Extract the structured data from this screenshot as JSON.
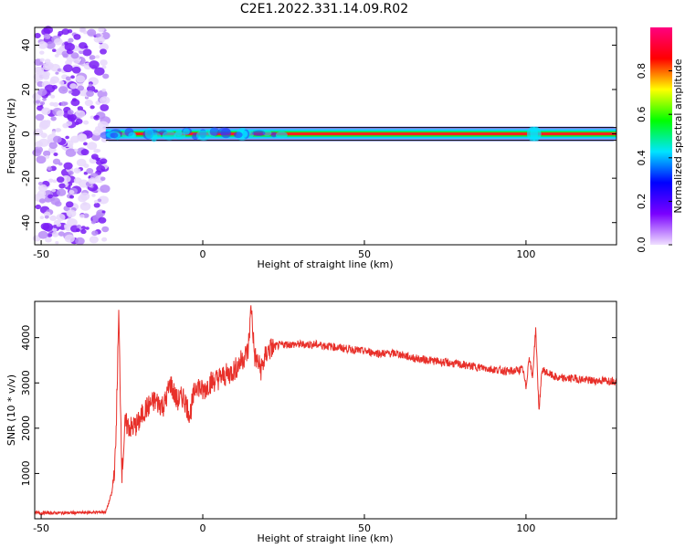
{
  "title": "C2E1.2022.331.14.09.R02",
  "colors": {
    "snr_line": "#e8302a",
    "spectrum_points": "#7a3cf0",
    "axes": "#000000"
  },
  "chart_data": [
    {
      "type": "heatmap",
      "xlabel": "Height of straight line (km)",
      "ylabel": "Frequency (Hz)",
      "xlim": [
        -52,
        128
      ],
      "ylim": [
        -50,
        48
      ],
      "x_ticks": [
        -50,
        0,
        50,
        100
      ],
      "y_ticks": [
        40,
        20,
        0,
        -20,
        -40
      ],
      "colorbar": {
        "label": "Normalized spectral amplitude",
        "range": [
          0,
          1
        ],
        "ticks": [
          "0.0",
          "0.2",
          "0.4",
          "0.6",
          "0.8"
        ],
        "colormap": [
          "#f0e0ff",
          "#7a00ff",
          "#0000ff",
          "#00e5ff",
          "#00ff00",
          "#ffff00",
          "#ff0000",
          "#ff0080"
        ]
      },
      "description_values": {
        "noise_region_x": [
          -52,
          -30
        ],
        "noise_frequency_range": [
          -50,
          48
        ],
        "carrier_frequency": 0,
        "carrier_x_range": [
          -30,
          128
        ]
      }
    },
    {
      "type": "line",
      "xlabel": "Height of straight line (km)",
      "ylabel": "SNR (10 * v/v)",
      "xlim": [
        -52,
        128
      ],
      "ylim": [
        0,
        4800
      ],
      "x_ticks": [
        -50,
        0,
        50,
        100
      ],
      "y_ticks": [
        1000,
        2000,
        3000,
        4000
      ],
      "series": [
        {
          "x": [
            -52,
            -40,
            -30,
            -28,
            -27,
            -26,
            -25,
            -24,
            -22,
            -20,
            -18,
            -15,
            -12,
            -10,
            -8,
            -6,
            -4,
            -2,
            0,
            2,
            5,
            8,
            10,
            12,
            14,
            15,
            16,
            18,
            20,
            22,
            25,
            30,
            35,
            40,
            45,
            50,
            55,
            60,
            65,
            70,
            75,
            80,
            85,
            90,
            95,
            99,
            100,
            101,
            102,
            103,
            104,
            105,
            107,
            110,
            115,
            120,
            125,
            128
          ],
          "y": [
            130,
            130,
            150,
            600,
            1400,
            4500,
            1000,
            2100,
            2000,
            2100,
            2400,
            2600,
            2500,
            3000,
            2600,
            2700,
            2300,
            3000,
            2800,
            3000,
            3100,
            3200,
            3300,
            3500,
            3700,
            4700,
            3600,
            3300,
            3700,
            3800,
            3850,
            3850,
            3850,
            3800,
            3750,
            3700,
            3650,
            3650,
            3550,
            3500,
            3450,
            3400,
            3350,
            3300,
            3250,
            3300,
            2900,
            3600,
            3100,
            4200,
            2400,
            3300,
            3200,
            3100,
            3100,
            3050,
            3050,
            3050
          ]
        }
      ]
    }
  ]
}
